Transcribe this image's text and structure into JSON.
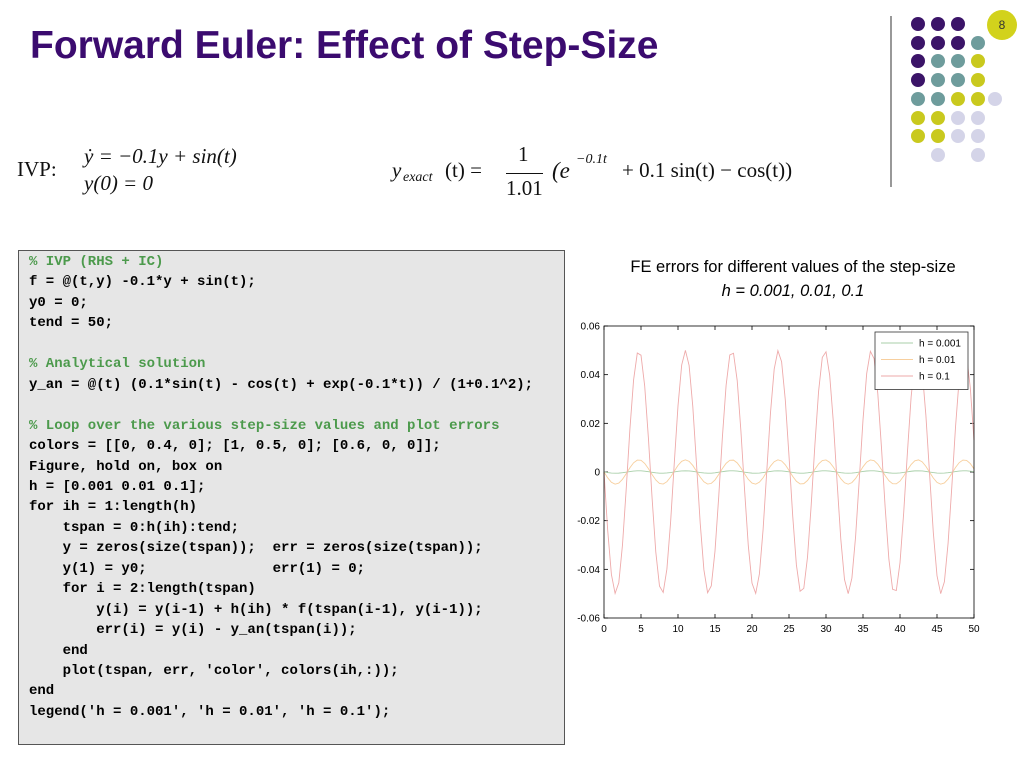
{
  "header": {
    "title": "Forward Euler: Effect of Step-Size",
    "page_number": "8"
  },
  "ivp": {
    "label": "IVP:",
    "ode": [
      "ẏ = −0.1y + sin(t)",
      "y(0) = 0"
    ],
    "exact": {
      "lhs": "y",
      "lhs_sub": "exact",
      "lhs_rest": "(t) =",
      "numerator": "1",
      "denominator": "1.01",
      "open": "(e",
      "exponent": "−0.1t",
      "rest": "+ 0.1 sin(t) − cos(t))"
    }
  },
  "code": {
    "blocks": [
      [
        "% IVP (RHS + IC)",
        "f = @(t,y) -0.1*y + sin(t);",
        "y0 = 0;",
        "tend = 50;"
      ],
      [
        "% Analytical solution",
        "y_an = @(t) (0.1*sin(t) - cos(t) + exp(-0.1*t)) / (1+0.1^2);"
      ],
      [
        "% Loop over the various step-size values and plot errors",
        "colors = [[0, 0.4, 0]; [1, 0.5, 0]; [0.6, 0, 0]];",
        "Figure, hold on, box on",
        "h = [0.001 0.01 0.1];",
        "for ih = 1:length(h)",
        "    tspan = 0:h(ih):tend;",
        "    y = zeros(size(tspan));  err = zeros(size(tspan));",
        "    y(1) = y0;               err(1) = 0;",
        "    for i = 2:length(tspan)",
        "        y(i) = y(i-1) + h(ih) * f(tspan(i-1), y(i-1));",
        "        err(i) = y(i) - y_an(tspan(i));",
        "    end",
        "    plot(tspan, err, 'color', colors(ih,:));",
        "end",
        "legend('h = 0.001', 'h = 0.01', 'h = 0.1');"
      ]
    ]
  },
  "chart_data": {
    "type": "line",
    "title": "FE errors for different values of the step-size",
    "subtitle": "h = 0.001, 0.01, 0.1",
    "x": [
      0,
      0.5,
      1,
      1.5,
      2,
      2.5,
      3,
      3.5,
      4,
      4.5,
      5,
      5.5,
      6,
      6.5,
      7,
      7.5,
      8,
      8.5,
      9,
      9.5,
      10,
      10.5,
      11,
      11.5,
      12,
      12.5,
      13,
      13.5,
      14,
      14.5,
      15,
      15.5,
      16,
      16.5,
      17,
      17.5,
      18,
      18.5,
      19,
      19.5,
      20,
      20.5,
      21,
      21.5,
      22,
      22.5,
      23,
      23.5,
      24,
      24.5,
      25,
      25.5,
      26,
      26.5,
      27,
      27.5,
      28,
      28.5,
      29,
      29.5,
      30,
      30.5,
      31,
      31.5,
      32,
      32.5,
      33,
      33.5,
      34,
      34.5,
      35,
      35.5,
      36,
      36.5,
      37,
      37.5,
      38,
      38.5,
      39,
      39.5,
      40,
      40.5,
      41,
      41.5,
      42,
      42.5,
      43,
      43.5,
      44,
      44.5,
      45,
      45.5,
      46,
      46.5,
      47,
      47.5,
      48,
      48.5,
      49,
      49.5,
      50
    ],
    "series": [
      {
        "name": "h = 0.001",
        "color": "#a9cfa9",
        "values": [
          0,
          -0.00024,
          -0.00042,
          -0.0005,
          -0.00046,
          -0.0003,
          -7e-05,
          0.00018,
          0.00038,
          0.00049,
          0.00048,
          0.00035,
          0.00014,
          -0.00011,
          -0.00033,
          -0.00047,
          -0.0005,
          -0.0004,
          -0.00021,
          4e-05,
          0.00027,
          0.00044,
          0.0005,
          0.00044,
          0.00027,
          3e-05,
          -0.00021,
          -0.0004,
          -0.0005,
          -0.00047,
          -0.00033,
          -0.0001,
          0.00014,
          0.00036,
          0.00048,
          0.00049,
          0.00038,
          0.00017,
          -8e-05,
          -0.0003,
          -0.00046,
          -0.0005,
          -0.00042,
          -0.00024,
          1e-05,
          0.00024,
          0.00042,
          0.0005,
          0.00045,
          0.0003,
          7e-05,
          -0.00018,
          -0.00038,
          -0.00049,
          -0.00048,
          -0.00035,
          -0.00014,
          0.00011,
          0.00033,
          0.00047,
          0.00049,
          0.0004,
          0.0002,
          -4e-05,
          -0.00028,
          -0.00044,
          -0.0005,
          -0.00044,
          -0.00027,
          -3e-05,
          0.00021,
          0.00041,
          0.0005,
          0.00047,
          0.00032,
          0.0001,
          -0.00015,
          -0.00036,
          -0.00048,
          -0.00049,
          -0.00037,
          -0.00017,
          8e-05,
          0.00031,
          0.00046,
          0.0005,
          0.00042,
          0.00023,
          -1e-05,
          -0.00025,
          -0.00043,
          -0.0005,
          -0.00045,
          -0.00029,
          -6e-05,
          0.00018,
          0.00038,
          0.00049,
          0.00048,
          0.00035,
          0.00013
        ]
      },
      {
        "name": "h = 0.01",
        "color": "#f7cf9e",
        "values": [
          0,
          -0.0024,
          -0.00421,
          -0.00499,
          -0.00455,
          -0.00299,
          -0.00071,
          0.00176,
          0.00379,
          0.00489,
          0.0048,
          0.00353,
          0.0014,
          -0.00108,
          -0.00329,
          -0.00469,
          -0.00495,
          -0.00399,
          -0.00206,
          0.00038,
          0.00272,
          0.0044,
          0.005,
          0.00438,
          0.00269,
          0.00033,
          -0.0021,
          -0.00402,
          -0.00496,
          -0.00468,
          -0.00325,
          -0.00103,
          0.00144,
          0.00356,
          0.00481,
          0.00488,
          0.00376,
          0.00169,
          -0.00075,
          -0.00303,
          -0.00457,
          -0.00499,
          -0.00419,
          -0.00236,
          5e-05,
          0.00244,
          0.00423,
          0.00499,
          0.00453,
          0.00296,
          0.00066,
          -0.0018,
          -0.00382,
          -0.0049,
          -0.00478,
          -0.0035,
          -0.00136,
          0.00112,
          0.00332,
          0.00471,
          0.00494,
          0.00397,
          0.00202,
          -0.00042,
          -0.00276,
          -0.00442,
          -0.005,
          -0.00436,
          -0.00265,
          -0.00029,
          0.00214,
          0.00405,
          0.00496,
          0.00466,
          0.00322,
          0.00099,
          -0.00148,
          -0.00359,
          -0.00482,
          -0.00487,
          -0.00373,
          -0.00167,
          0.00079,
          0.00307,
          0.00459,
          0.00498,
          0.00416,
          0.00232,
          -9e-05,
          -0.00248,
          -0.00426,
          -0.005,
          -0.00451,
          -0.00292,
          -0.00062,
          0.00184,
          0.00384,
          0.00491,
          0.00477,
          0.00346,
          0.00131
        ]
      },
      {
        "name": "h = 0.1",
        "color": "#eeaaaa",
        "values": [
          0,
          -0.024,
          -0.0421,
          -0.0499,
          -0.0455,
          -0.0299,
          -0.0071,
          0.0176,
          0.0379,
          0.0489,
          0.048,
          0.0353,
          0.014,
          -0.0108,
          -0.0329,
          -0.0469,
          -0.0495,
          -0.0399,
          -0.0206,
          0.0038,
          0.0272,
          0.044,
          0.05,
          0.0438,
          0.0269,
          0.0033,
          -0.021,
          -0.0402,
          -0.0496,
          -0.0468,
          -0.0325,
          -0.0103,
          0.0144,
          0.0356,
          0.0481,
          0.0488,
          0.0376,
          0.0169,
          -0.0075,
          -0.0303,
          -0.0457,
          -0.0499,
          -0.0419,
          -0.0236,
          0.0005,
          0.0244,
          0.0423,
          0.0499,
          0.0453,
          0.0296,
          0.0066,
          -0.018,
          -0.0382,
          -0.049,
          -0.0478,
          -0.035,
          -0.0136,
          0.0112,
          0.0332,
          0.0471,
          0.0494,
          0.0397,
          0.0202,
          -0.0042,
          -0.0276,
          -0.0442,
          -0.05,
          -0.0436,
          -0.0265,
          -0.0029,
          0.0214,
          0.0405,
          0.0496,
          0.0466,
          0.0322,
          0.0099,
          -0.0148,
          -0.0359,
          -0.0482,
          -0.0487,
          -0.0373,
          -0.0167,
          0.0079,
          0.0307,
          0.0459,
          0.0498,
          0.0416,
          0.0232,
          -0.0009,
          -0.0248,
          -0.0426,
          -0.05,
          -0.0451,
          -0.0292,
          -0.0062,
          0.0184,
          0.0384,
          0.0491,
          0.0477,
          0.0346,
          0.0131
        ]
      }
    ],
    "xlim": [
      0,
      50
    ],
    "xticks": [
      0,
      5,
      10,
      15,
      20,
      25,
      30,
      35,
      40,
      45,
      50
    ],
    "ylim": [
      -0.06,
      0.06
    ],
    "yticks": [
      -0.06,
      -0.04,
      -0.02,
      0,
      0.02,
      0.04,
      0.06
    ],
    "legend": "northeast"
  }
}
